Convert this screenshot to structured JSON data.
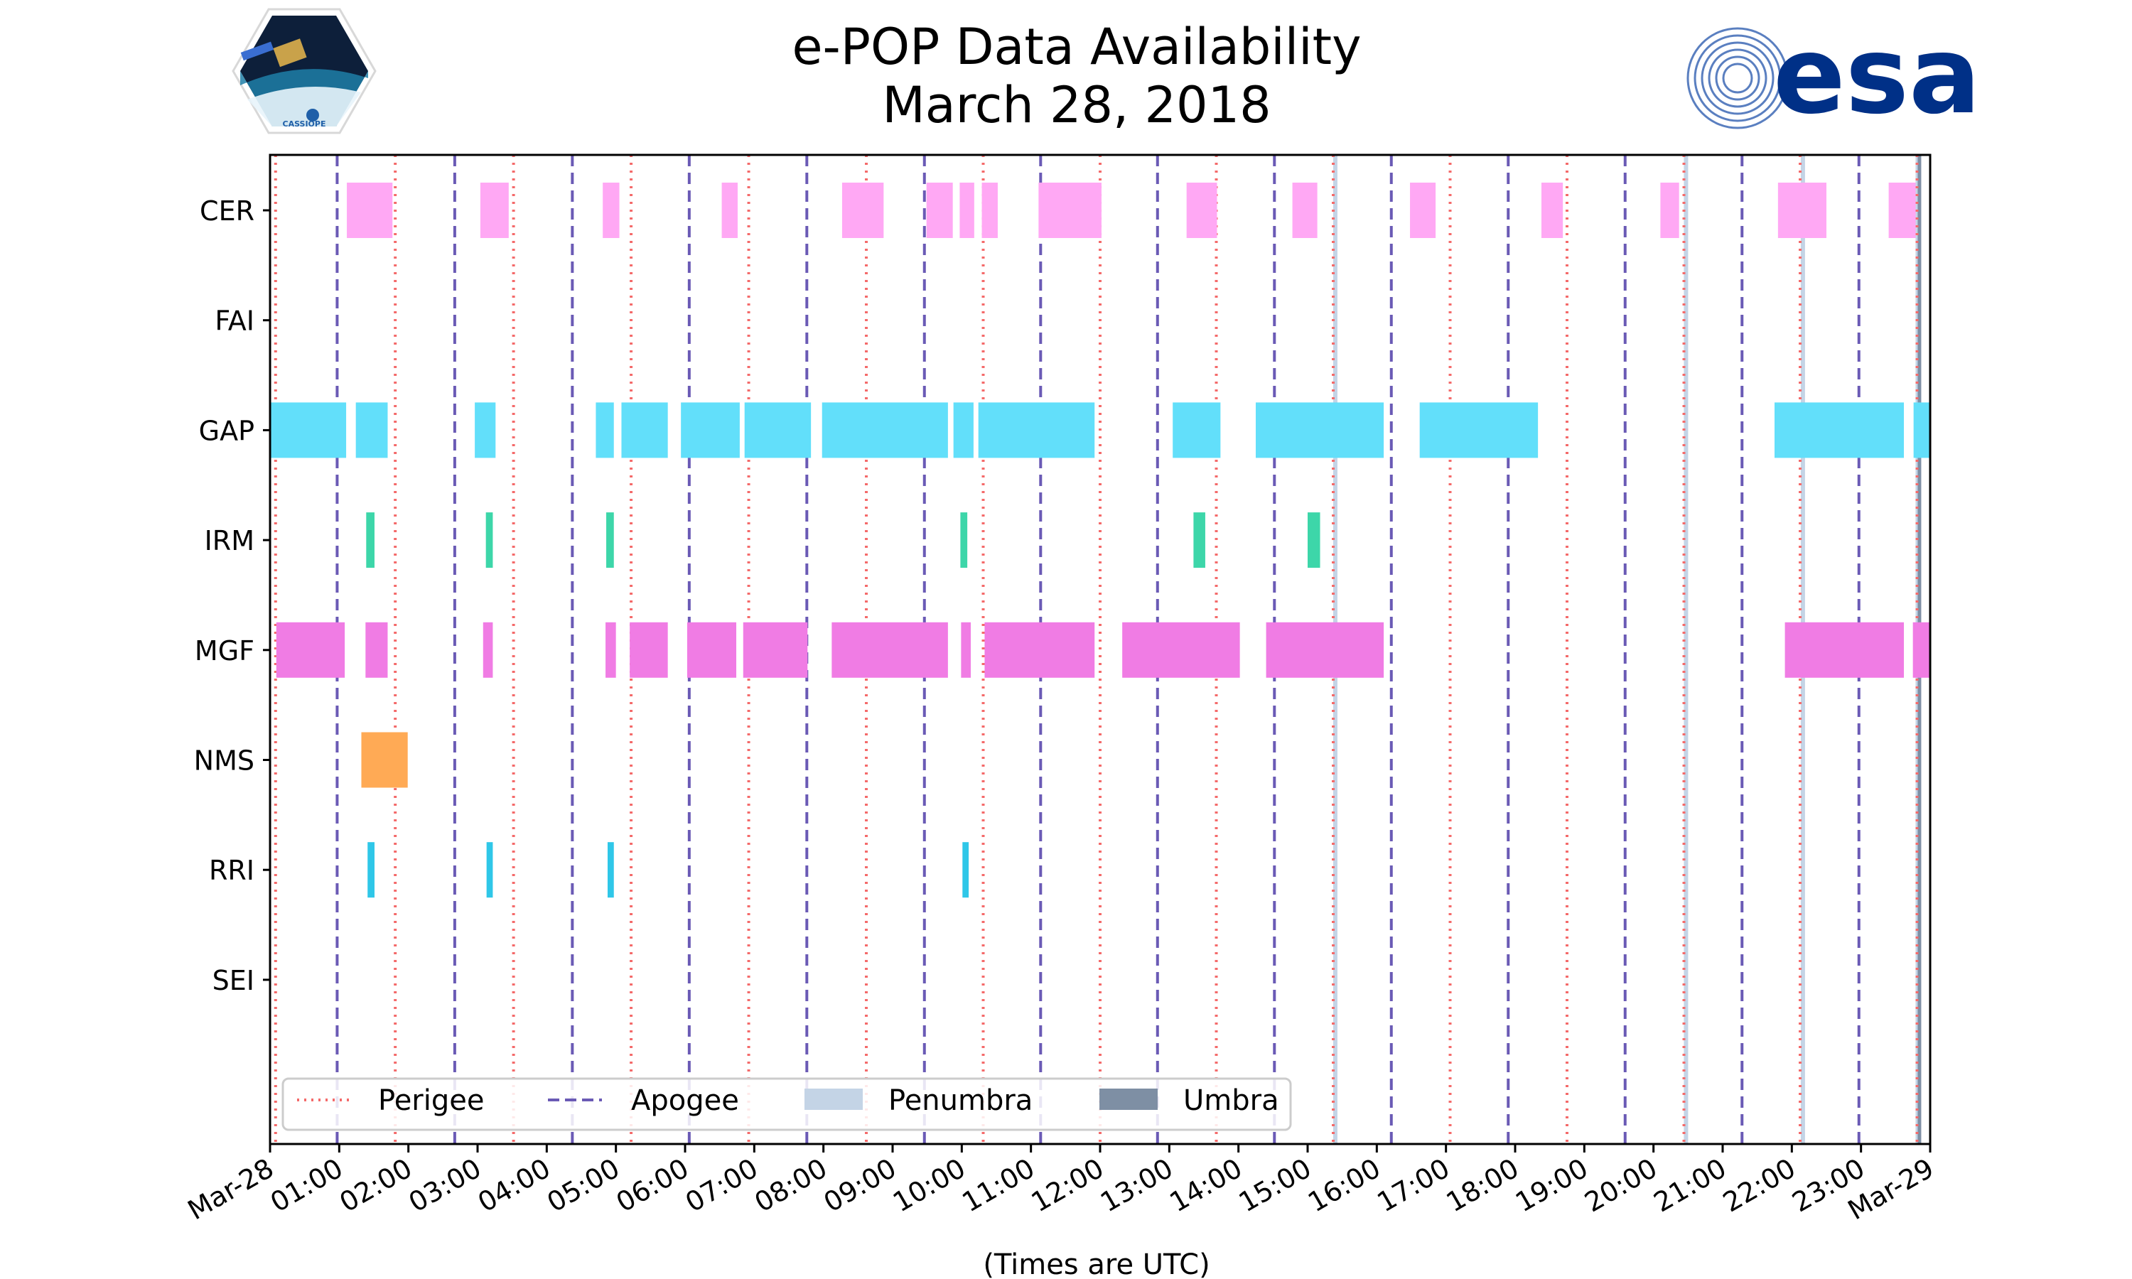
{
  "chart_data": {
    "type": "timeline",
    "title": [
      "e-POP Data Availability",
      "March 28, 2018"
    ],
    "xlabel": "(Times are UTC)",
    "x_unit": "hours",
    "xlim": [
      0,
      24
    ],
    "x_ticks": [
      {
        "h": 0,
        "label": "Mar-28"
      },
      {
        "h": 1,
        "label": "01:00"
      },
      {
        "h": 2,
        "label": "02:00"
      },
      {
        "h": 3,
        "label": "03:00"
      },
      {
        "h": 4,
        "label": "04:00"
      },
      {
        "h": 5,
        "label": "05:00"
      },
      {
        "h": 6,
        "label": "06:00"
      },
      {
        "h": 7,
        "label": "07:00"
      },
      {
        "h": 8,
        "label": "08:00"
      },
      {
        "h": 9,
        "label": "09:00"
      },
      {
        "h": 10,
        "label": "10:00"
      },
      {
        "h": 11,
        "label": "11:00"
      },
      {
        "h": 12,
        "label": "12:00"
      },
      {
        "h": 13,
        "label": "13:00"
      },
      {
        "h": 14,
        "label": "14:00"
      },
      {
        "h": 15,
        "label": "15:00"
      },
      {
        "h": 16,
        "label": "16:00"
      },
      {
        "h": 17,
        "label": "17:00"
      },
      {
        "h": 18,
        "label": "18:00"
      },
      {
        "h": 19,
        "label": "19:00"
      },
      {
        "h": 20,
        "label": "20:00"
      },
      {
        "h": 21,
        "label": "21:00"
      },
      {
        "h": 22,
        "label": "22:00"
      },
      {
        "h": 23,
        "label": "23:00"
      },
      {
        "h": 24,
        "label": "Mar-29"
      }
    ],
    "instruments": [
      {
        "name": "CER",
        "color": "#ffa8f4",
        "intervals": [
          [
            1.11,
            1.77
          ],
          [
            3.04,
            3.45
          ],
          [
            4.81,
            5.05
          ],
          [
            6.53,
            6.76
          ],
          [
            8.27,
            8.87
          ],
          [
            9.49,
            9.87
          ],
          [
            9.97,
            10.18
          ],
          [
            10.29,
            10.52
          ],
          [
            11.11,
            12.02
          ],
          [
            13.25,
            13.69
          ],
          [
            14.78,
            15.14
          ],
          [
            16.48,
            16.85
          ],
          [
            18.38,
            18.69
          ],
          [
            20.1,
            20.37
          ],
          [
            21.8,
            22.5
          ],
          [
            23.4,
            23.79
          ]
        ]
      },
      {
        "name": "FAI",
        "color": "#a0a0a0",
        "intervals": []
      },
      {
        "name": "GAP",
        "color": "#62dffa",
        "intervals": [
          [
            0.0,
            1.1
          ],
          [
            1.24,
            1.7
          ],
          [
            2.96,
            3.26
          ],
          [
            4.71,
            4.97
          ],
          [
            5.08,
            5.75
          ],
          [
            5.94,
            6.79
          ],
          [
            6.86,
            7.82
          ],
          [
            7.98,
            9.8
          ],
          [
            9.88,
            10.17
          ],
          [
            10.24,
            11.92
          ],
          [
            13.05,
            13.74
          ],
          [
            14.25,
            16.1
          ],
          [
            16.62,
            18.33
          ],
          [
            21.75,
            23.62
          ],
          [
            23.76,
            24.2
          ]
        ]
      },
      {
        "name": "IRM",
        "color": "#3dd6a9",
        "intervals": [
          [
            1.39,
            1.51
          ],
          [
            3.12,
            3.22
          ],
          [
            4.86,
            4.97
          ],
          [
            9.98,
            10.08
          ],
          [
            13.35,
            13.52
          ],
          [
            15.0,
            15.18
          ]
        ]
      },
      {
        "name": "MGF",
        "color": "#f07ce4",
        "intervals": [
          [
            0.09,
            1.08
          ],
          [
            1.38,
            1.7
          ],
          [
            3.08,
            3.22
          ],
          [
            4.85,
            5.0
          ],
          [
            5.2,
            5.75
          ],
          [
            6.03,
            6.74
          ],
          [
            6.84,
            7.77
          ],
          [
            8.12,
            9.8
          ],
          [
            9.99,
            10.13
          ],
          [
            10.33,
            11.92
          ],
          [
            12.32,
            14.02
          ],
          [
            14.4,
            16.1
          ],
          [
            21.9,
            23.62
          ],
          [
            23.75,
            24.2
          ]
        ]
      },
      {
        "name": "NMS",
        "color": "#ffaa55",
        "intervals": [
          [
            1.32,
            1.99
          ]
        ]
      },
      {
        "name": "RRI",
        "color": "#2fc7e8",
        "intervals": [
          [
            1.41,
            1.51
          ],
          [
            3.13,
            3.22
          ],
          [
            4.88,
            4.97
          ],
          [
            10.01,
            10.1
          ]
        ]
      },
      {
        "name": "SEI",
        "color": "#a0a0a0",
        "intervals": []
      }
    ],
    "perigee_times": [
      0.08,
      1.81,
      3.52,
      5.22,
      6.92,
      8.62,
      10.31,
      12.0,
      13.68,
      15.37,
      17.06,
      18.75,
      20.44,
      22.12,
      23.81
    ],
    "apogee_times": [
      0.97,
      2.67,
      4.37,
      6.06,
      7.76,
      9.46,
      11.14,
      12.83,
      14.52,
      16.21,
      17.9,
      19.59,
      21.28,
      22.97
    ],
    "penumbra_times": [
      15.4,
      20.47,
      22.16,
      23.82
    ],
    "umbra_times": [
      23.84
    ],
    "legend": [
      {
        "label": "Perigee",
        "style": "dotted",
        "color": "#f46a6a"
      },
      {
        "label": "Apogee",
        "style": "dashed",
        "color": "#6a5ab5"
      },
      {
        "label": "Penumbra",
        "style": "patch",
        "color": "#c4d4e6"
      },
      {
        "label": "Umbra",
        "style": "patch",
        "color": "#7e8fa4"
      }
    ],
    "legend_position": "lower-left"
  },
  "logos": {
    "cassiope_label": "CASSIOPE",
    "esa_text": "esa"
  }
}
